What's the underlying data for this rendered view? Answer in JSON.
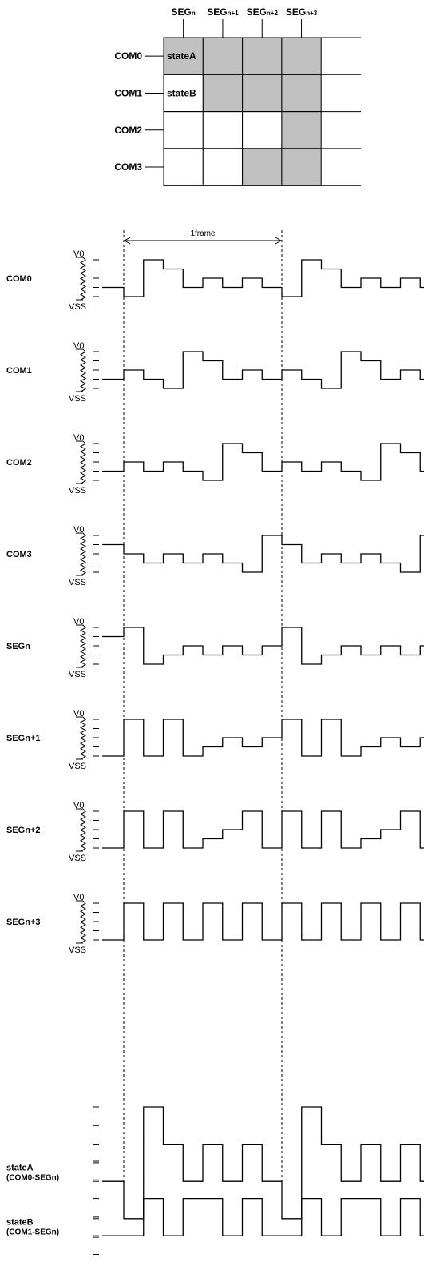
{
  "colors": {
    "ink": "#000000",
    "shade": "#c0c0c0",
    "background": "#ffffff"
  },
  "matrix": {
    "seg_labels": [
      {
        "base": "SEG",
        "sub": "n"
      },
      {
        "base": "SEG",
        "sub": "n+1"
      },
      {
        "base": "SEG",
        "sub": "n+2"
      },
      {
        "base": "SEG",
        "sub": "n+3"
      }
    ],
    "com_labels": [
      "COM0",
      "COM1",
      "COM2",
      "COM3"
    ],
    "cells": [
      [
        1,
        1,
        1,
        1
      ],
      [
        0,
        1,
        1,
        1
      ],
      [
        0,
        0,
        0,
        1
      ],
      [
        0,
        0,
        1,
        1
      ]
    ],
    "cell_labels": [
      {
        "row": 0,
        "col": 0,
        "text": "stateA"
      },
      {
        "row": 1,
        "col": 0,
        "text": "stateB"
      }
    ]
  },
  "frame_label": "1frame",
  "rail_labels": {
    "top": "V0",
    "bottom": "VSS"
  },
  "waveforms": [
    {
      "label": [
        "COM0"
      ],
      "has_ladder": true,
      "ticks": 4,
      "steps": [
        1,
        0,
        4,
        3,
        1,
        2,
        1,
        2,
        1,
        0,
        4,
        3,
        1,
        2,
        1,
        2,
        1
      ]
    },
    {
      "label": [
        "COM1"
      ],
      "has_ladder": true,
      "ticks": 4,
      "steps": [
        1,
        2,
        1,
        0,
        4,
        3,
        1,
        2,
        1,
        2,
        1,
        0,
        4,
        3,
        1,
        2,
        1
      ]
    },
    {
      "label": [
        "COM2"
      ],
      "has_ladder": true,
      "ticks": 4,
      "steps": [
        1,
        2,
        1,
        2,
        1,
        0,
        4,
        3,
        1,
        2,
        1,
        2,
        1,
        0,
        4,
        3,
        1
      ]
    },
    {
      "label": [
        "COM3"
      ],
      "has_ladder": true,
      "ticks": 4,
      "steps": [
        3,
        2,
        1,
        2,
        1,
        2,
        1,
        0,
        4,
        3,
        1,
        2,
        1,
        2,
        1,
        0,
        4
      ]
    },
    {
      "label": [
        "SEGn"
      ],
      "has_ladder": true,
      "ticks": 4,
      "steps": [
        3,
        4,
        0,
        1,
        2,
        1,
        2,
        1,
        2,
        4,
        0,
        1,
        2,
        1,
        2,
        1,
        2
      ]
    },
    {
      "label": [
        "SEGn+1"
      ],
      "has_ladder": true,
      "ticks": 4,
      "steps": [
        0,
        4,
        0,
        4,
        0,
        1,
        2,
        1,
        2,
        4,
        0,
        4,
        0,
        1,
        2,
        1,
        2
      ]
    },
    {
      "label": [
        "SEGn+2"
      ],
      "has_ladder": true,
      "ticks": 4,
      "steps": [
        0,
        4,
        0,
        4,
        0,
        1,
        2,
        4,
        0,
        4,
        0,
        4,
        0,
        1,
        2,
        4,
        0
      ]
    },
    {
      "label": [
        "SEGn+3"
      ],
      "has_ladder": true,
      "ticks": 4,
      "steps": [
        0,
        4,
        0,
        4,
        0,
        4,
        0,
        4,
        0,
        4,
        0,
        4,
        0,
        4,
        0,
        4,
        0
      ]
    },
    {
      "label": [
        "stateA",
        "(COM0-SEGn)"
      ],
      "has_ladder": false,
      "ticks": 7,
      "steps": [
        3,
        1,
        7,
        5,
        3,
        5,
        3,
        5,
        3,
        1,
        7,
        5,
        3,
        5,
        3,
        5,
        3
      ]
    },
    {
      "label": [
        "stateB",
        "(COM1-SEGn)"
      ],
      "has_ladder": false,
      "ticks": 7,
      "steps": [
        3,
        3,
        5,
        3,
        5,
        5,
        3,
        5,
        3,
        3,
        5,
        3,
        5,
        5,
        3,
        5,
        3
      ]
    }
  ]
}
